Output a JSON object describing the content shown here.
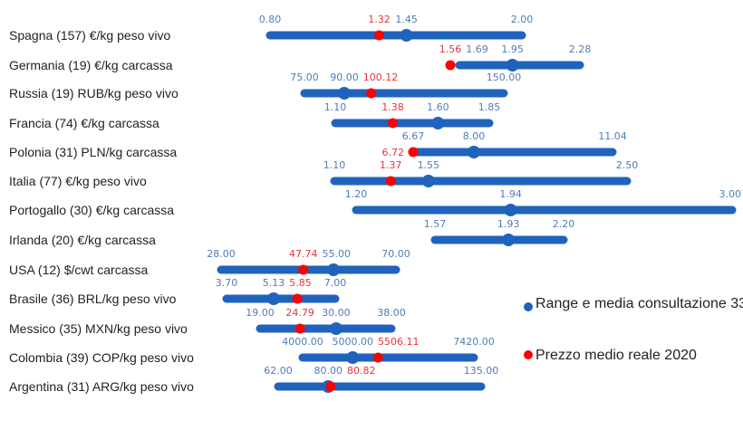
{
  "chart_data": {
    "type": "range-dot",
    "colors": {
      "range": "#1f63bd",
      "price": "#ff0000",
      "value_label": "#4f7db8",
      "price_label": "#e8333a"
    },
    "legend": {
      "placement": "right",
      "entries": [
        {
          "name": "Range e media consultazione 33",
          "color": "#1f63bd"
        },
        {
          "name": "Prezzo medio reale 2020",
          "color": "#ff0000"
        }
      ]
    },
    "rows": [
      {
        "label": "Spagna (157) €/kg peso vivo",
        "min": "0.80",
        "mean": "1.45",
        "max": "2.00",
        "price": "1.32"
      },
      {
        "label": "Germania (19) €/kg carcassa",
        "min": "1.69",
        "mean": "1.95",
        "max": "2.28",
        "price": "1.56"
      },
      {
        "label": "Russia (19) RUB/kg peso vivo",
        "min": "75.00",
        "mean": "90.00",
        "max": "150.00",
        "price": "100.12"
      },
      {
        "label": "Francia (74) €/kg carcassa",
        "min": "1.10",
        "mean": "1.60",
        "max": "1.85",
        "price": "1.38"
      },
      {
        "label": "Polonia (31) PLN/kg carcassa",
        "min": "6.67",
        "mean": "8.00",
        "max": "11.04",
        "price": "6.72"
      },
      {
        "label": "Italia (77) €/kg peso vivo",
        "min": "1.10",
        "mean": "1.55",
        "max": "2.50",
        "price": "1.37"
      },
      {
        "label": "Portogallo (30) €/kg carcassa",
        "min": "1.20",
        "mean": "1.94",
        "max": "3.00",
        "price": null
      },
      {
        "label": "Irlanda (20) €/kg carcassa",
        "min": "1.57",
        "mean": "1.93",
        "max": "2.20",
        "price": null
      },
      {
        "label": "USA (12) $/cwt carcassa",
        "min": "28.00",
        "mean": "55.00",
        "max": "70.00",
        "price": "47.74"
      },
      {
        "label": "Brasile (36) BRL/kg peso vivo",
        "min": "3.70",
        "mean": "5.13",
        "max": "7.00",
        "price": "5.85"
      },
      {
        "label": "Messico (35) MXN/kg peso vivo",
        "min": "19.00",
        "mean": "30.00",
        "max": "38.00",
        "price": "24.79"
      },
      {
        "label": "Colombia (39) COP/kg peso vivo",
        "min": "4000.00",
        "mean": "5000.00",
        "max": "7420.00",
        "price": "5506.11"
      },
      {
        "label": "Argentina (31) ARG/kg peso vivo",
        "min": "62.00",
        "mean": "80.00",
        "max": "135.00",
        "price": "80.82"
      }
    ]
  }
}
